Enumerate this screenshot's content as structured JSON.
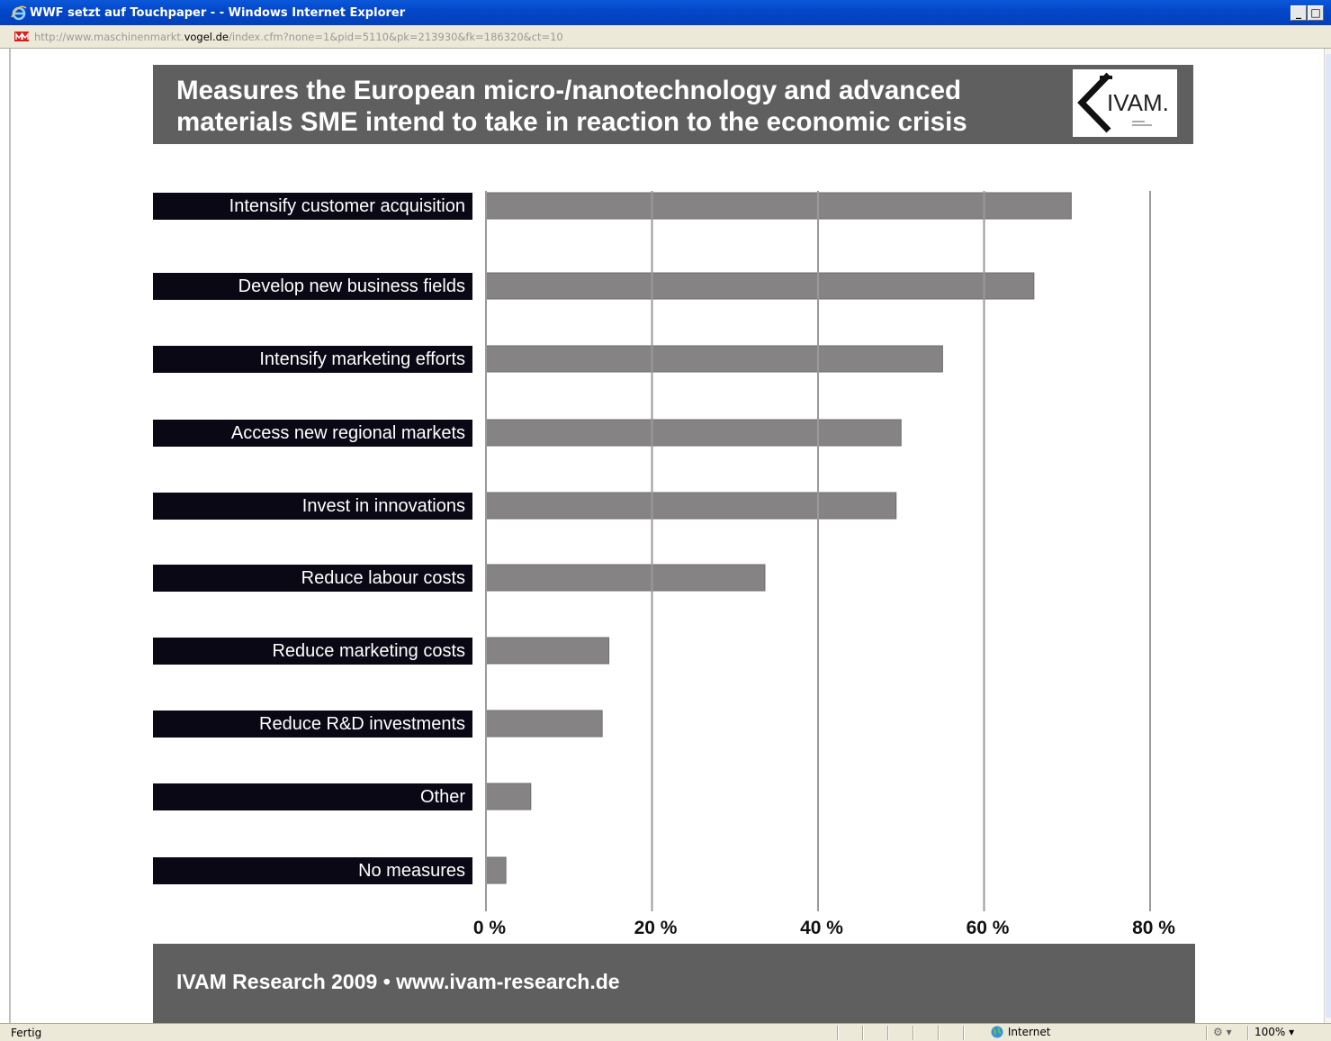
{
  "window": {
    "title": "WWF setzt auf Touchpaper - - Windows Internet Explorer",
    "min_label": "_",
    "max_label": "□",
    "address_url_prefix": "http://www.maschinenmarkt.",
    "address_url_host": "vogel.de",
    "address_url_suffix": "/index.cfm?none=1&pid=5110&pk=213930&fk=186320&ct=10"
  },
  "page": {
    "banner_title_line1": "Measures the European micro-/nanotechnology and advanced",
    "banner_title_line2": "materials SME intend to take in reaction to the economic crisis",
    "logo_text": "IVAM.",
    "footer_text": "IVAM Research 2009 • www.ivam-research.de"
  },
  "chart_data": {
    "type": "bar",
    "orientation": "horizontal",
    "title": "Measures the European micro-/nanotechnology and advanced materials SME intend to take in reaction to the economic crisis",
    "categories": [
      "Intensify customer acquisition",
      "Develop new business fields",
      "Intensify marketing efforts",
      "Access new regional markets",
      "Invest in innovations",
      "Reduce labour costs",
      "Reduce marketing costs",
      "Reduce R&D investments",
      "Other",
      "No measures"
    ],
    "values": [
      70.5,
      66,
      55,
      50,
      49.4,
      33.6,
      14.8,
      14,
      5.4,
      2.4
    ],
    "xlim": [
      0,
      80
    ],
    "xticks": [
      "0 %",
      "20 %",
      "40 %",
      "60 %",
      "80 %"
    ],
    "xtick_values": [
      0,
      20,
      40,
      60,
      80
    ],
    "grid": "vertical",
    "bar_color": "#858383",
    "grid_color": "#9a9a9a",
    "label_bg_color": "#0a0814"
  },
  "statusbar": {
    "status": "Fertig",
    "zone": "Internet",
    "protected_mode": "⚙ ▾",
    "zoom": "100%  ▾"
  },
  "colors": {
    "banner": "#5f5f5f",
    "titlebar": "#0446c9"
  }
}
